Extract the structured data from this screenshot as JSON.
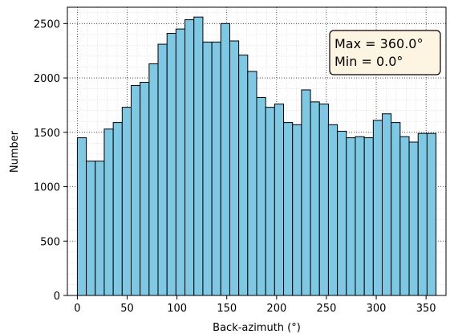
{
  "chart_data": {
    "type": "bar",
    "xlabel": "Back-azimuth (°)",
    "ylabel": "Number",
    "xlim": [
      -10,
      370
    ],
    "ylim": [
      0,
      2650
    ],
    "bin_width": 9,
    "bins": [
      0,
      9,
      18,
      27,
      36,
      45,
      54,
      63,
      72,
      81,
      90,
      99,
      108,
      117,
      126,
      135,
      144,
      153,
      162,
      171,
      180,
      189,
      198,
      207,
      216,
      225,
      234,
      243,
      252,
      261,
      270,
      279,
      288,
      297,
      306,
      315,
      324,
      333,
      342,
      351
    ],
    "values": [
      1450,
      1235,
      1235,
      1530,
      1590,
      1730,
      1930,
      1960,
      2130,
      2310,
      2410,
      2450,
      2535,
      2560,
      2330,
      2330,
      2500,
      2340,
      2210,
      2060,
      1820,
      1730,
      1760,
      1590,
      1570,
      1890,
      1780,
      1760,
      1570,
      1510,
      1450,
      1460,
      1450,
      1610,
      1670,
      1590,
      1460,
      1410,
      1490,
      1490
    ],
    "x_ticks": [
      "0",
      "50",
      "100",
      "150",
      "200",
      "250",
      "300",
      "350"
    ],
    "y_ticks": [
      "0",
      "500",
      "1000",
      "1500",
      "2000",
      "2500"
    ],
    "grid": true,
    "bar_color": "#7ec8e3",
    "annotation": {
      "line1": "Max = 360.0°",
      "line2": "Min = 0.0°",
      "placement": "top-right",
      "background": "#fdf5e2"
    }
  }
}
